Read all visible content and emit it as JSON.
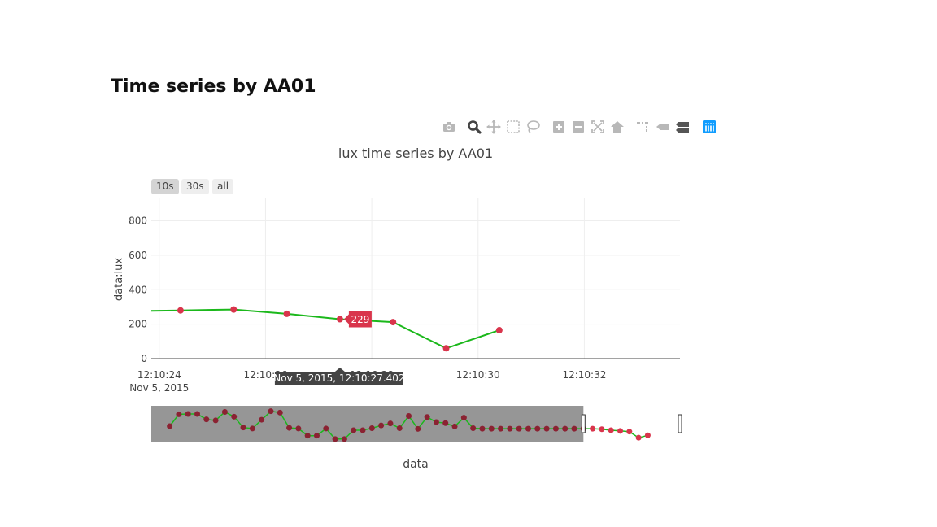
{
  "page": {
    "title": "Time series by AA01"
  },
  "modebar": {
    "icons": [
      "camera-icon",
      "zoom-icon",
      "pan-icon",
      "box-select-icon",
      "lasso-select-icon",
      "zoom-in-icon",
      "zoom-out-icon",
      "autoscale-icon",
      "reset-axes-icon",
      "spike-lines-icon",
      "hover-closest-icon",
      "hover-compare-icon",
      "plotly-logo-icon"
    ],
    "active": "zoom-icon",
    "accent": "#119dff"
  },
  "range_selector": {
    "buttons": [
      {
        "label": "10s",
        "active": true
      },
      {
        "label": "30s",
        "active": false
      },
      {
        "label": "all",
        "active": false
      }
    ]
  },
  "hover": {
    "value_label": "229",
    "x_label": "Nov 5, 2015, 12:10:27.402"
  },
  "chart_data": {
    "type": "line",
    "title": "lux time series by AA01",
    "xlabel": "data",
    "ylabel": "data:lux",
    "date": "Nov 5, 2015",
    "xlim_seconds": [
      23.85,
      33.8
    ],
    "ylim": [
      0,
      930
    ],
    "yticks": [
      0,
      200,
      400,
      600,
      800
    ],
    "ytick_labels": [
      "0",
      "200",
      "400",
      "600",
      "800"
    ],
    "xtick_seconds": [
      24,
      26,
      28,
      30,
      32
    ],
    "xtick_labels": [
      "12:10:24",
      "12:10:26",
      "12:10:28",
      "12:10:30",
      "12:10:32"
    ],
    "grid": true,
    "line_color": "#1bb81b",
    "marker_color": "#d9354c",
    "series": [
      {
        "x_seconds": [
          23.4,
          24.4,
          25.4,
          26.4,
          27.4,
          28.4,
          29.4,
          30.4
        ],
        "values": [
          275,
          280,
          285,
          260,
          229,
          212,
          60,
          165
        ]
      }
    ],
    "rangeslider": {
      "x_seconds": [
        4.2,
        4.8,
        5.4,
        6.0,
        6.6,
        7.2,
        7.8,
        8.4,
        9.0,
        9.6,
        10.2,
        10.8,
        11.4,
        12.0,
        12.6,
        13.2,
        13.8,
        14.4,
        15.0,
        15.6,
        16.2,
        16.8,
        17.4,
        18.0,
        18.6,
        19.2,
        19.8,
        20.4,
        21.0,
        21.6,
        22.2,
        22.8,
        23.4,
        24.0,
        24.6,
        25.2,
        25.8,
        26.4,
        27.0,
        27.6,
        28.2,
        28.8,
        29.4,
        30.0,
        30.6,
        31.2,
        31.8,
        32.4,
        33.0,
        33.6,
        34.2,
        34.8,
        35.4
      ],
      "values": [
        400,
        750,
        760,
        760,
        600,
        570,
        820,
        680,
        360,
        330,
        590,
        840,
        800,
        350,
        330,
        120,
        120,
        330,
        20,
        20,
        280,
        280,
        340,
        420,
        480,
        340,
        700,
        320,
        670,
        520,
        490,
        390,
        650,
        340,
        325,
        325,
        325,
        325,
        325,
        325,
        325,
        325,
        325,
        325,
        325,
        325,
        325,
        310,
        280,
        260,
        240,
        60,
        130
      ],
      "ylim": [
        -80,
        1000
      ],
      "xlim_seconds": [
        3.0,
        37.5
      ],
      "window_seconds": [
        3.0,
        31.2
      ]
    }
  }
}
